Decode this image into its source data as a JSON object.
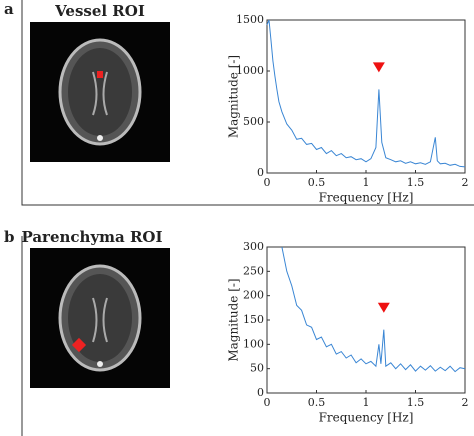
{
  "panels": [
    {
      "label": "a",
      "roi_title": "Vessel ROI"
    },
    {
      "label": "b",
      "roi_title": "Parenchyma ROI"
    }
  ],
  "chart_data": [
    {
      "type": "line",
      "xlabel": "Frequency [Hz]",
      "ylabel": "Magnitude [-]",
      "color": "#3a86d4",
      "xlim": [
        0,
        2
      ],
      "xticks": [
        0,
        0.5,
        1,
        1.5,
        2
      ],
      "ylim": [
        0,
        1500
      ],
      "yticks": [
        0,
        500,
        1000,
        1500
      ],
      "x": [
        0,
        0.02,
        0.04,
        0.06,
        0.08,
        0.1,
        0.12,
        0.15,
        0.2,
        0.25,
        0.3,
        0.35,
        0.4,
        0.45,
        0.5,
        0.55,
        0.6,
        0.65,
        0.7,
        0.75,
        0.8,
        0.85,
        0.9,
        0.95,
        1.0,
        1.05,
        1.1,
        1.13,
        1.16,
        1.2,
        1.25,
        1.3,
        1.35,
        1.4,
        1.45,
        1.5,
        1.55,
        1.6,
        1.65,
        1.7,
        1.72,
        1.75,
        1.8,
        1.85,
        1.9,
        1.95,
        2.0
      ],
      "values": [
        1450,
        1500,
        1300,
        1100,
        950,
        820,
        700,
        600,
        480,
        420,
        330,
        340,
        280,
        290,
        230,
        250,
        190,
        220,
        170,
        190,
        150,
        160,
        130,
        140,
        110,
        140,
        250,
        820,
        300,
        150,
        130,
        110,
        120,
        95,
        110,
        90,
        100,
        85,
        110,
        350,
        120,
        90,
        95,
        75,
        85,
        65,
        60
      ]
    },
    {
      "type": "line",
      "xlabel": "Frequency [Hz]",
      "ylabel": "Magnitude [-]",
      "color": "#3a86d4",
      "xlim": [
        0,
        2
      ],
      "xticks": [
        0,
        0.5,
        1,
        1.5,
        2
      ],
      "ylim": [
        0,
        300
      ],
      "yticks": [
        0,
        50,
        100,
        150,
        200,
        250,
        300
      ],
      "x": [
        0.15,
        0.2,
        0.25,
        0.3,
        0.35,
        0.4,
        0.45,
        0.5,
        0.55,
        0.6,
        0.65,
        0.7,
        0.75,
        0.8,
        0.85,
        0.9,
        0.95,
        1.0,
        1.05,
        1.1,
        1.13,
        1.15,
        1.18,
        1.2,
        1.25,
        1.3,
        1.35,
        1.4,
        1.45,
        1.5,
        1.55,
        1.6,
        1.65,
        1.7,
        1.75,
        1.8,
        1.85,
        1.9,
        1.95,
        2.0
      ],
      "values": [
        300,
        250,
        220,
        180,
        170,
        140,
        135,
        110,
        115,
        95,
        100,
        80,
        85,
        72,
        78,
        62,
        70,
        60,
        65,
        55,
        100,
        60,
        130,
        55,
        62,
        50,
        60,
        48,
        58,
        45,
        55,
        47,
        56,
        45,
        53,
        46,
        55,
        44,
        52,
        50
      ]
    }
  ]
}
